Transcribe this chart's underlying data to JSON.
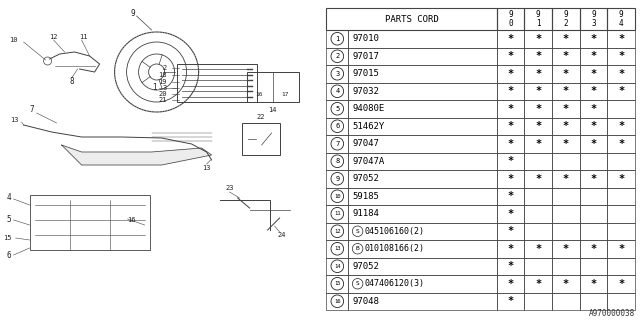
{
  "bg_color": "#ffffff",
  "rows": [
    {
      "num": 1,
      "part": "97010",
      "prefix": "",
      "cols": [
        true,
        true,
        true,
        true,
        true
      ]
    },
    {
      "num": 2,
      "part": "97017",
      "prefix": "",
      "cols": [
        true,
        true,
        true,
        true,
        true
      ]
    },
    {
      "num": 3,
      "part": "97015",
      "prefix": "",
      "cols": [
        true,
        true,
        true,
        true,
        true
      ]
    },
    {
      "num": 4,
      "part": "97032",
      "prefix": "",
      "cols": [
        true,
        true,
        true,
        true,
        true
      ]
    },
    {
      "num": 5,
      "part": "94080E",
      "prefix": "",
      "cols": [
        true,
        true,
        true,
        true,
        false
      ]
    },
    {
      "num": 6,
      "part": "51462Y",
      "prefix": "",
      "cols": [
        true,
        true,
        true,
        true,
        true
      ]
    },
    {
      "num": 7,
      "part": "97047",
      "prefix": "",
      "cols": [
        true,
        true,
        true,
        true,
        true
      ]
    },
    {
      "num": 8,
      "part": "97047A",
      "prefix": "",
      "cols": [
        true,
        false,
        false,
        false,
        false
      ]
    },
    {
      "num": 9,
      "part": "97052",
      "prefix": "",
      "cols": [
        true,
        true,
        true,
        true,
        true
      ]
    },
    {
      "num": 10,
      "part": "59185",
      "prefix": "",
      "cols": [
        true,
        false,
        false,
        false,
        false
      ]
    },
    {
      "num": 11,
      "part": "91184",
      "prefix": "",
      "cols": [
        true,
        false,
        false,
        false,
        false
      ]
    },
    {
      "num": 12,
      "part": "045106160(2)",
      "prefix": "S",
      "cols": [
        true,
        false,
        false,
        false,
        false
      ]
    },
    {
      "num": 13,
      "part": "010108166(2)",
      "prefix": "B",
      "cols": [
        true,
        true,
        true,
        true,
        true
      ]
    },
    {
      "num": 14,
      "part": "97052",
      "prefix": "",
      "cols": [
        true,
        false,
        false,
        false,
        false
      ]
    },
    {
      "num": 15,
      "part": "047406120(3)",
      "prefix": "S",
      "cols": [
        true,
        true,
        true,
        true,
        true
      ]
    },
    {
      "num": 16,
      "part": "97048",
      "prefix": "",
      "cols": [
        true,
        false,
        false,
        false,
        false
      ]
    }
  ],
  "years": [
    "9\n0",
    "9\n1",
    "9\n2",
    "9\n3",
    "9\n4"
  ],
  "footer": "A970000038"
}
